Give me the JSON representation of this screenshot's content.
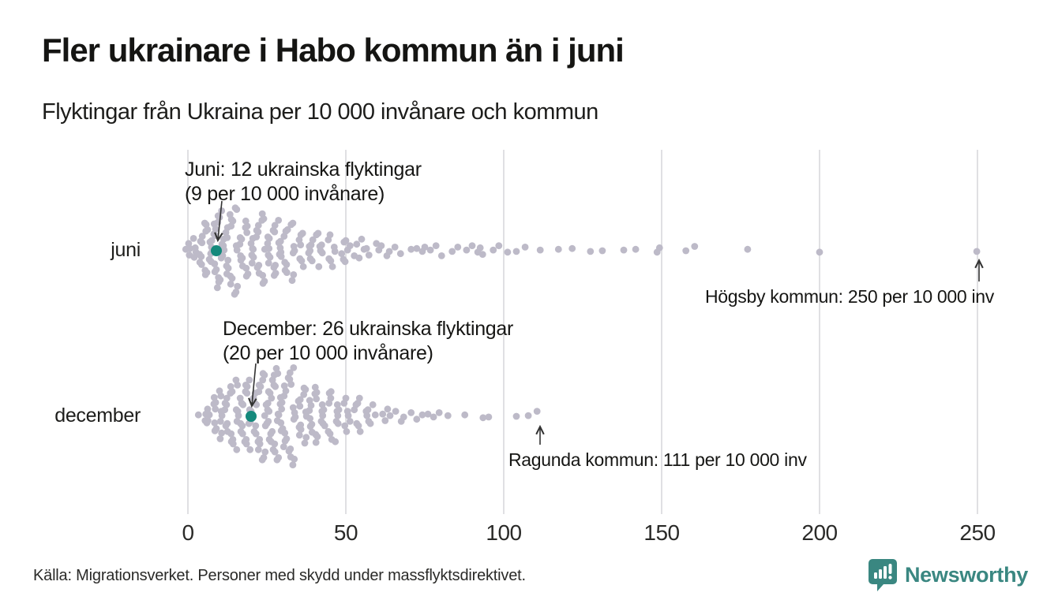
{
  "header": {
    "title": "Fler ukrainare i Habo kommun än i juni",
    "subtitle": "Flyktingar från Ukraina per 10 000 invånare och kommun"
  },
  "footer": {
    "source": "Källa: Migrationsverket. Personer med skydd under massflyktsdirektivet.",
    "brand": "Newsworthy"
  },
  "icons": {
    "logo": "newsworthy-speech-bubble-bar-chart-icon"
  },
  "colors": {
    "dot_gray": "#bdbac8",
    "highlight_teal": "#15897c",
    "grid": "#d8d8dc",
    "arrow": "#333333",
    "brand_teal": "#3a8781",
    "text": "#1d1d1b"
  },
  "chart_data": {
    "type": "beeswarm",
    "title": "Fler ukrainare i Habo kommun än i juni",
    "subtitle": "Flyktingar från Ukraina per 10 000 invånare och kommun",
    "xlabel": "Flyktingar från Ukraina per 10 000 invånare",
    "ylabel": "",
    "grid": "vertical",
    "x_axis": {
      "min": 0,
      "max": 262,
      "ticks": [
        0,
        50,
        100,
        150,
        200,
        250
      ]
    },
    "categories": [
      "juni",
      "december"
    ],
    "series": [
      {
        "name": "juni",
        "highlight": {
          "value": 9,
          "label_line1": "Juni: 12 ukrainska flyktingar",
          "label_line2": "(9 per 10 000 invånare)"
        },
        "outlier": {
          "value": 250,
          "label": "Högsby kommun: 250 per 10 000 inv"
        },
        "histogram": [
          [
            0,
            4
          ],
          [
            2,
            2
          ],
          [
            3,
            3
          ],
          [
            4,
            4
          ],
          [
            5,
            4
          ],
          [
            6,
            5
          ],
          [
            7,
            5
          ],
          [
            8,
            5
          ],
          [
            9,
            6
          ],
          [
            10,
            6
          ],
          [
            11,
            5
          ],
          [
            12,
            5
          ],
          [
            13,
            5
          ],
          [
            14,
            5
          ],
          [
            15,
            5
          ],
          [
            16,
            4
          ],
          [
            17,
            4
          ],
          [
            18,
            4
          ],
          [
            19,
            4
          ],
          [
            20,
            4
          ],
          [
            21,
            4
          ],
          [
            22,
            4
          ],
          [
            23,
            4
          ],
          [
            24,
            4
          ],
          [
            25,
            4
          ],
          [
            26,
            4
          ],
          [
            27,
            4
          ],
          [
            28,
            4
          ],
          [
            29,
            4
          ],
          [
            30,
            4
          ],
          [
            31,
            3
          ],
          [
            32,
            3
          ],
          [
            33,
            3
          ],
          [
            34,
            3
          ],
          [
            35,
            3
          ],
          [
            36,
            2
          ],
          [
            37,
            2
          ],
          [
            38,
            3
          ],
          [
            39,
            2
          ],
          [
            40,
            3
          ],
          [
            41,
            2
          ],
          [
            42,
            2
          ],
          [
            43,
            2
          ],
          [
            44,
            2
          ],
          [
            45,
            2
          ],
          [
            46,
            1
          ],
          [
            47,
            2
          ],
          [
            48,
            1
          ],
          [
            49,
            2
          ],
          [
            50,
            2
          ],
          [
            51,
            1
          ],
          [
            52,
            2
          ],
          [
            53,
            1
          ],
          [
            54,
            1
          ],
          [
            55,
            1
          ],
          [
            56,
            1
          ],
          [
            57,
            1
          ],
          [
            58,
            1
          ],
          [
            59,
            1
          ],
          [
            60,
            1
          ],
          [
            61,
            1
          ],
          [
            63,
            1
          ],
          [
            64,
            1
          ],
          [
            66,
            1
          ],
          [
            68,
            1
          ],
          [
            70,
            1
          ],
          [
            72,
            1
          ],
          [
            74,
            1
          ],
          [
            75,
            1
          ],
          [
            77,
            1
          ],
          [
            79,
            1
          ],
          [
            81,
            1
          ],
          [
            83,
            1
          ],
          [
            85,
            1
          ],
          [
            88,
            1
          ],
          [
            90,
            1
          ],
          [
            92,
            1
          ],
          [
            93,
            1
          ],
          [
            94,
            1
          ],
          [
            96,
            1
          ],
          [
            98,
            1
          ],
          [
            101,
            1
          ],
          [
            104,
            1
          ],
          [
            107,
            1
          ],
          [
            112,
            1
          ],
          [
            118,
            1
          ],
          [
            121,
            1
          ],
          [
            127,
            1
          ],
          [
            131,
            1
          ],
          [
            138,
            1
          ],
          [
            142,
            1
          ],
          [
            149,
            1
          ],
          [
            150,
            1
          ],
          [
            157,
            1
          ],
          [
            160,
            1
          ],
          [
            177,
            1
          ],
          [
            200,
            1
          ],
          [
            250,
            1
          ]
        ]
      },
      {
        "name": "december",
        "highlight": {
          "value": 20,
          "label_line1": "December: 26 ukrainska flyktingar",
          "label_line2": "(20 per 10 000 invånare)"
        },
        "outlier": {
          "value": 111,
          "label": "Ragunda kommun: 111 per 10 000 inv"
        },
        "histogram": [
          [
            4,
            1
          ],
          [
            5,
            2
          ],
          [
            6,
            2
          ],
          [
            7,
            3
          ],
          [
            8,
            3
          ],
          [
            9,
            4
          ],
          [
            10,
            4
          ],
          [
            11,
            4
          ],
          [
            12,
            4
          ],
          [
            13,
            4
          ],
          [
            14,
            4
          ],
          [
            15,
            4
          ],
          [
            16,
            5
          ],
          [
            17,
            5
          ],
          [
            18,
            5
          ],
          [
            19,
            5
          ],
          [
            20,
            5
          ],
          [
            21,
            5
          ],
          [
            22,
            5
          ],
          [
            23,
            5
          ],
          [
            24,
            5
          ],
          [
            25,
            7
          ],
          [
            26,
            7
          ],
          [
            27,
            6
          ],
          [
            28,
            6
          ],
          [
            29,
            6
          ],
          [
            30,
            6
          ],
          [
            31,
            5
          ],
          [
            32,
            5
          ],
          [
            33,
            5
          ],
          [
            34,
            4
          ],
          [
            35,
            4
          ],
          [
            36,
            4
          ],
          [
            37,
            4
          ],
          [
            38,
            4
          ],
          [
            39,
            4
          ],
          [
            40,
            4
          ],
          [
            41,
            4
          ],
          [
            42,
            3
          ],
          [
            43,
            3
          ],
          [
            44,
            3
          ],
          [
            45,
            3
          ],
          [
            46,
            3
          ],
          [
            47,
            3
          ],
          [
            48,
            3
          ],
          [
            49,
            2
          ],
          [
            50,
            2
          ],
          [
            51,
            2
          ],
          [
            52,
            2
          ],
          [
            53,
            2
          ],
          [
            54,
            2
          ],
          [
            55,
            2
          ],
          [
            56,
            2
          ],
          [
            57,
            2
          ],
          [
            58,
            1
          ],
          [
            59,
            1
          ],
          [
            60,
            1
          ],
          [
            61,
            1
          ],
          [
            62,
            1
          ],
          [
            63,
            1
          ],
          [
            64,
            1
          ],
          [
            66,
            1
          ],
          [
            68,
            1
          ],
          [
            69,
            1
          ],
          [
            70,
            1
          ],
          [
            72,
            1
          ],
          [
            74,
            1
          ],
          [
            76,
            1
          ],
          [
            78,
            1
          ],
          [
            80,
            1
          ],
          [
            83,
            1
          ],
          [
            87,
            1
          ],
          [
            93,
            1
          ],
          [
            95,
            1
          ],
          [
            104,
            1
          ],
          [
            108,
            1
          ],
          [
            111,
            1
          ]
        ]
      }
    ]
  }
}
